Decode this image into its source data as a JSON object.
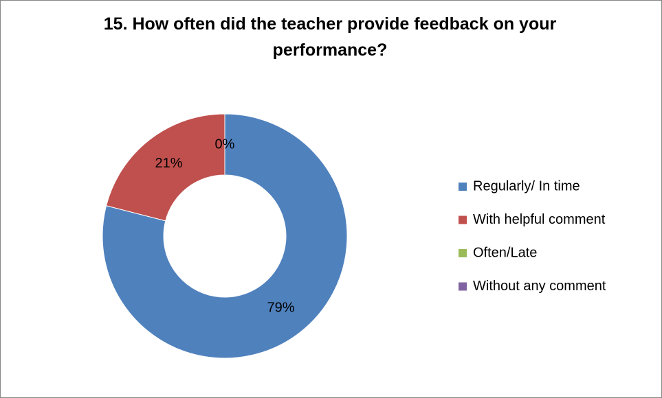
{
  "chart_data": {
    "type": "donut",
    "title": "15. How often did the teacher provide feedback on your performance?",
    "categories": [
      "Regularly/ In time",
      "With helpful comment",
      "Often/Late",
      "Without any comment"
    ],
    "values": [
      79,
      21,
      0,
      0
    ],
    "value_labels": [
      "79%",
      "21%",
      "0%",
      null
    ],
    "colors": [
      "#4f81bd",
      "#c0504d",
      "#9bbb59",
      "#8064a2"
    ],
    "legend": "right"
  }
}
